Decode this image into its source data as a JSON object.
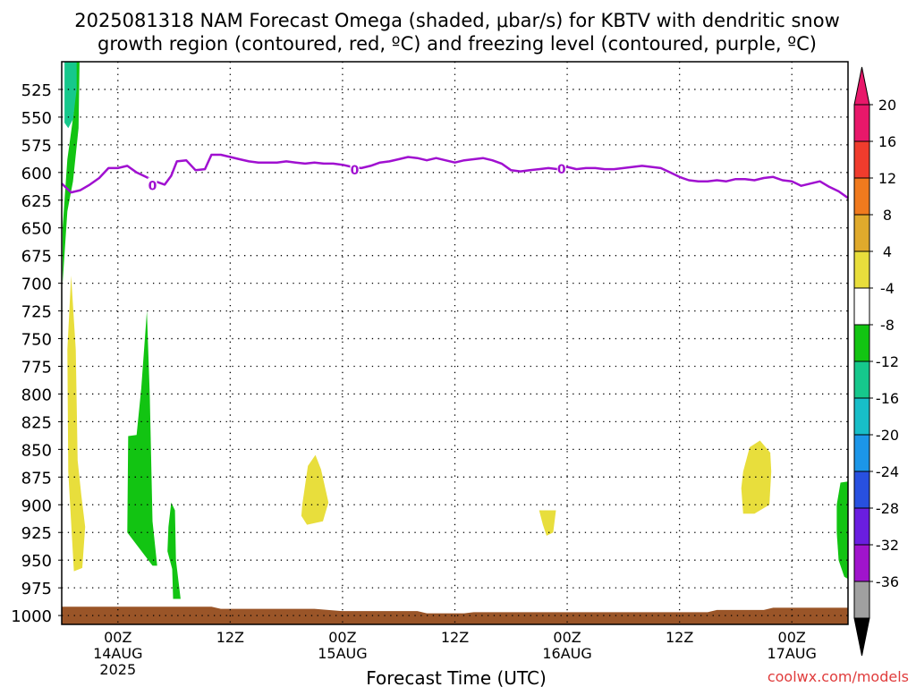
{
  "chart_data": {
    "type": "contour",
    "title_line1": "2025081318 NAM Forecast Omega (shaded, μbar/s) for KBTV with dendritic snow",
    "title_line2": "growth region (contoured, red, ºC) and freezing level (contoured, purple, ºC)",
    "xlabel": "Forecast Time (UTC)",
    "ylabel": "",
    "watermark": "coolwx.com/models",
    "x_axis": {
      "unit": "hours since 2025-08-13 18Z",
      "xlim": [
        0,
        84
      ],
      "ticks": [
        {
          "x": 6,
          "label": "00Z",
          "date": "14AUG",
          "year": "2025"
        },
        {
          "x": 18,
          "label": "12Z",
          "date": "",
          "year": ""
        },
        {
          "x": 30,
          "label": "00Z",
          "date": "15AUG",
          "year": ""
        },
        {
          "x": 42,
          "label": "12Z",
          "date": "",
          "year": ""
        },
        {
          "x": 54,
          "label": "00Z",
          "date": "16AUG",
          "year": ""
        },
        {
          "x": 66,
          "label": "12Z",
          "date": "",
          "year": ""
        },
        {
          "x": 78,
          "label": "00Z",
          "date": "17AUG",
          "year": ""
        }
      ]
    },
    "y_axis": {
      "unit": "hPa",
      "ylim": [
        1008,
        500
      ],
      "ticks": [
        525,
        550,
        575,
        600,
        625,
        650,
        675,
        700,
        725,
        750,
        775,
        800,
        825,
        850,
        875,
        900,
        925,
        950,
        975,
        1000
      ]
    },
    "grid": true,
    "colorbar": {
      "labels": [
        "20",
        "16",
        "12",
        "8",
        "4",
        "-4",
        "-8",
        "-12",
        "-16",
        "-20",
        "-24",
        "-28",
        "-32",
        "-36"
      ],
      "colors": [
        "#e8186a",
        "#f03c2d",
        "#f07a1e",
        "#e0aa2c",
        "#e8de3c",
        "#ffffff",
        "#12c412",
        "#16c88c",
        "#18bec8",
        "#1c96e8",
        "#2850e0",
        "#6a1ee0",
        "#a014cc",
        "#a0a0a0",
        "#000000"
      ],
      "top_arrow_color": "#e8186a",
      "bottom_arrow_color": "#000000"
    },
    "freezing_level": {
      "color": "#a010d0",
      "contour_label": "0",
      "label_positions": [
        [
          9.7,
          611
        ],
        [
          31.3,
          597
        ],
        [
          53.4,
          596
        ]
      ],
      "points": [
        [
          0,
          610
        ],
        [
          1,
          618
        ],
        [
          2,
          616
        ],
        [
          3,
          611
        ],
        [
          4,
          605
        ],
        [
          5,
          596
        ],
        [
          6,
          596
        ],
        [
          7,
          594
        ],
        [
          8,
          600
        ],
        [
          9,
          604
        ],
        [
          10,
          608
        ],
        [
          11,
          611
        ],
        [
          11.7,
          603
        ],
        [
          12.3,
          590
        ],
        [
          13.3,
          589
        ],
        [
          14.3,
          598
        ],
        [
          15.3,
          597
        ],
        [
          16,
          584
        ],
        [
          17,
          584
        ],
        [
          18,
          586
        ],
        [
          19,
          588
        ],
        [
          20,
          590
        ],
        [
          21,
          591
        ],
        [
          22,
          591
        ],
        [
          23,
          591
        ],
        [
          24,
          590
        ],
        [
          25,
          591
        ],
        [
          26,
          592
        ],
        [
          27,
          591
        ],
        [
          28,
          592
        ],
        [
          29,
          592
        ],
        [
          30,
          593
        ],
        [
          31,
          595
        ],
        [
          32,
          596
        ],
        [
          33,
          594
        ],
        [
          34,
          591
        ],
        [
          35,
          590
        ],
        [
          36,
          588
        ],
        [
          37,
          586
        ],
        [
          38,
          587
        ],
        [
          39,
          589
        ],
        [
          40,
          587
        ],
        [
          41,
          589
        ],
        [
          42,
          591
        ],
        [
          43,
          589
        ],
        [
          44,
          588
        ],
        [
          45,
          587
        ],
        [
          46,
          589
        ],
        [
          47,
          592
        ],
        [
          48,
          598
        ],
        [
          49,
          599
        ],
        [
          50,
          598
        ],
        [
          51,
          597
        ],
        [
          52,
          596
        ],
        [
          53,
          597
        ],
        [
          54,
          595
        ],
        [
          55,
          597
        ],
        [
          56,
          596
        ],
        [
          57,
          596
        ],
        [
          58,
          597
        ],
        [
          59,
          597
        ],
        [
          60,
          596
        ],
        [
          61,
          595
        ],
        [
          62,
          594
        ],
        [
          63,
          595
        ],
        [
          64,
          596
        ],
        [
          65,
          600
        ],
        [
          66,
          604
        ],
        [
          67,
          607
        ],
        [
          68,
          608
        ],
        [
          69,
          608
        ],
        [
          70,
          607
        ],
        [
          71,
          608
        ],
        [
          72,
          606
        ],
        [
          73,
          606
        ],
        [
          74,
          607
        ],
        [
          75,
          605
        ],
        [
          76,
          604
        ],
        [
          77,
          607
        ],
        [
          78,
          608
        ],
        [
          79,
          612
        ],
        [
          80,
          610
        ],
        [
          81,
          608
        ],
        [
          82,
          613
        ],
        [
          83,
          617
        ],
        [
          84,
          623
        ]
      ]
    },
    "ground": {
      "color": "#9a5528",
      "points": [
        [
          0,
          992
        ],
        [
          16,
          992
        ],
        [
          17,
          994
        ],
        [
          27,
          994
        ],
        [
          30,
          996
        ],
        [
          38,
          996
        ],
        [
          39,
          998
        ],
        [
          43,
          998
        ],
        [
          44,
          997
        ],
        [
          69,
          997
        ],
        [
          70,
          995
        ],
        [
          75,
          995
        ],
        [
          76,
          993
        ],
        [
          84,
          993
        ]
      ]
    },
    "shaded_regions": [
      {
        "value_range": "-8 to -4",
        "color": "#12c412",
        "points": [
          [
            0.1,
            650
          ],
          [
            0.6,
            588
          ],
          [
            1.3,
            545
          ],
          [
            1.2,
            500
          ],
          [
            1.9,
            500
          ],
          [
            1.8,
            560
          ],
          [
            1.2,
            608
          ],
          [
            0.6,
            635
          ],
          [
            0.1,
            700
          ]
        ]
      },
      {
        "value_range": "-12 to -8",
        "color": "#16c88c",
        "points": [
          [
            0.3,
            500
          ],
          [
            1.6,
            500
          ],
          [
            1.6,
            525
          ],
          [
            1.2,
            552
          ],
          [
            0.7,
            560
          ],
          [
            0.3,
            555
          ]
        ]
      },
      {
        "value_range": "4 to 8",
        "color": "#e8de3c",
        "points": [
          [
            1.0,
            693
          ],
          [
            1.5,
            760
          ],
          [
            1.7,
            860
          ],
          [
            2.1,
            892
          ],
          [
            2.5,
            920
          ],
          [
            2.2,
            957
          ],
          [
            1.3,
            960
          ],
          [
            0.7,
            870
          ],
          [
            0.6,
            760
          ]
        ]
      },
      {
        "value_range": "-8 to -4",
        "color": "#12c412",
        "points": [
          [
            7.1,
            838
          ],
          [
            8.0,
            837
          ],
          [
            8.5,
            795
          ],
          [
            9.1,
            725
          ],
          [
            9.4,
            800
          ],
          [
            9.7,
            915
          ],
          [
            10.2,
            955
          ],
          [
            9.7,
            955
          ],
          [
            8.8,
            945
          ],
          [
            7.0,
            925
          ]
        ]
      },
      {
        "value_range": "-8 to -4",
        "color": "#12c412",
        "points": [
          [
            11.4,
            920
          ],
          [
            11.7,
            898
          ],
          [
            12.1,
            905
          ],
          [
            12.2,
            950
          ],
          [
            12.7,
            985
          ],
          [
            11.9,
            985
          ],
          [
            11.8,
            958
          ],
          [
            11.3,
            942
          ]
        ]
      },
      {
        "value_range": "4 to 8",
        "color": "#e8de3c",
        "points": [
          [
            25.7,
            900
          ],
          [
            26.3,
            865
          ],
          [
            27.1,
            855
          ],
          [
            27.7,
            868
          ],
          [
            28.5,
            898
          ],
          [
            27.9,
            915
          ],
          [
            26.2,
            918
          ],
          [
            25.6,
            910
          ]
        ]
      },
      {
        "value_range": "4 to 8",
        "color": "#e8de3c",
        "points": [
          [
            51.0,
            905
          ],
          [
            52.8,
            905
          ],
          [
            52.5,
            925
          ],
          [
            51.8,
            928
          ],
          [
            51.4,
            918
          ]
        ]
      },
      {
        "value_range": "4 to 8",
        "color": "#e8de3c",
        "points": [
          [
            72.8,
            870
          ],
          [
            73.5,
            848
          ],
          [
            74.6,
            842
          ],
          [
            75.7,
            853
          ],
          [
            75.8,
            870
          ],
          [
            75.6,
            900
          ],
          [
            74.0,
            908
          ],
          [
            72.8,
            908
          ],
          [
            72.6,
            885
          ]
        ]
      },
      {
        "value_range": "-8 to -4",
        "color": "#12c412",
        "points": [
          [
            82.8,
            900
          ],
          [
            83.2,
            880
          ],
          [
            84,
            879
          ],
          [
            84,
            967
          ],
          [
            83.6,
            965
          ],
          [
            83.0,
            950
          ],
          [
            82.8,
            925
          ]
        ]
      }
    ]
  }
}
